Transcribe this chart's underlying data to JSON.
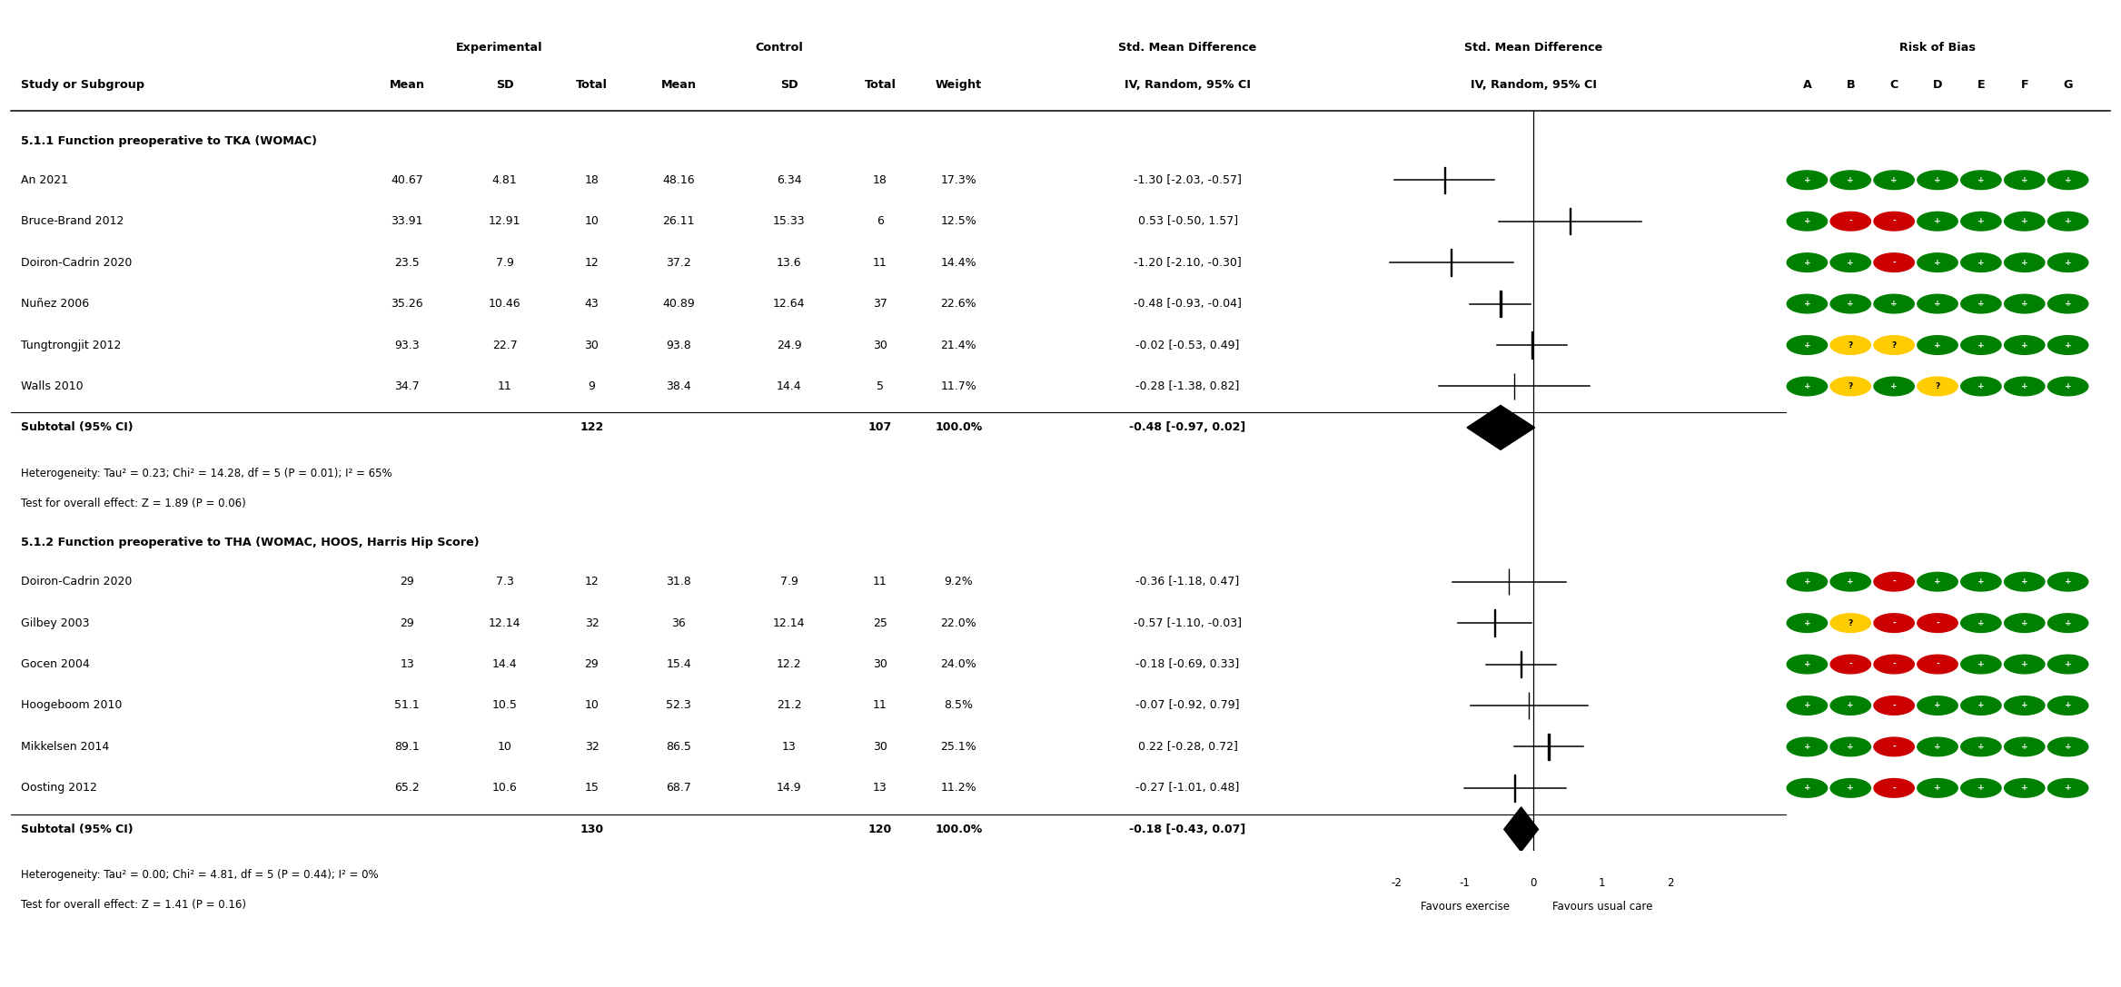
{
  "header_experimental": "Experimental",
  "header_control": "Control",
  "header_smd_top": "Std. Mean Difference",
  "header_smd_bot": "IV, Random, 95% CI",
  "header_forest_top": "Std. Mean Difference",
  "header_forest_bot": "IV, Random, 95% CI",
  "header_rob": "Risk of Bias",
  "rob_headers": [
    "A",
    "B",
    "C",
    "D",
    "E",
    "F",
    "G"
  ],
  "group1_header": "5.1.1 Function preoperative to TKA (WOMAC)",
  "group1_studies": [
    {
      "name": "An 2021",
      "exp_mean": "40.67",
      "exp_sd": "4.81",
      "exp_n": "18",
      "ctrl_mean": "48.16",
      "ctrl_sd": "6.34",
      "ctrl_n": "18",
      "weight": "17.3%",
      "smd_text": "-1.30 [-2.03, -0.57]",
      "smd": -1.3,
      "ci_low": -2.03,
      "ci_high": -0.57,
      "rob": [
        "+",
        "+",
        "+",
        "+",
        "+",
        "+",
        "+"
      ]
    },
    {
      "name": "Bruce-Brand 2012",
      "exp_mean": "33.91",
      "exp_sd": "12.91",
      "exp_n": "10",
      "ctrl_mean": "26.11",
      "ctrl_sd": "15.33",
      "ctrl_n": "6",
      "weight": "12.5%",
      "smd_text": "0.53 [-0.50, 1.57]",
      "smd": 0.53,
      "ci_low": -0.5,
      "ci_high": 1.57,
      "rob": [
        "+",
        "-",
        "-",
        "+",
        "+",
        "+",
        "+"
      ]
    },
    {
      "name": "Doiron-Cadrin 2020",
      "exp_mean": "23.5",
      "exp_sd": "7.9",
      "exp_n": "12",
      "ctrl_mean": "37.2",
      "ctrl_sd": "13.6",
      "ctrl_n": "11",
      "weight": "14.4%",
      "smd_text": "-1.20 [-2.10, -0.30]",
      "smd": -1.2,
      "ci_low": -2.1,
      "ci_high": -0.3,
      "rob": [
        "+",
        "+",
        "-",
        "+",
        "+",
        "+",
        "+"
      ]
    },
    {
      "name": "Nuñez 2006",
      "exp_mean": "35.26",
      "exp_sd": "10.46",
      "exp_n": "43",
      "ctrl_mean": "40.89",
      "ctrl_sd": "12.64",
      "ctrl_n": "37",
      "weight": "22.6%",
      "smd_text": "-0.48 [-0.93, -0.04]",
      "smd": -0.48,
      "ci_low": -0.93,
      "ci_high": -0.04,
      "rob": [
        "+",
        "+",
        "+",
        "+",
        "+",
        "+",
        "+"
      ]
    },
    {
      "name": "Tungtrongjit 2012",
      "exp_mean": "93.3",
      "exp_sd": "22.7",
      "exp_n": "30",
      "ctrl_mean": "93.8",
      "ctrl_sd": "24.9",
      "ctrl_n": "30",
      "weight": "21.4%",
      "smd_text": "-0.02 [-0.53, 0.49]",
      "smd": -0.02,
      "ci_low": -0.53,
      "ci_high": 0.49,
      "rob": [
        "+",
        "?",
        "?",
        "+",
        "+",
        "+",
        "+"
      ]
    },
    {
      "name": "Walls 2010",
      "exp_mean": "34.7",
      "exp_sd": "11",
      "exp_n": "9",
      "ctrl_mean": "38.4",
      "ctrl_sd": "14.4",
      "ctrl_n": "5",
      "weight": "11.7%",
      "smd_text": "-0.28 [-1.38, 0.82]",
      "smd": -0.28,
      "ci_low": -1.38,
      "ci_high": 0.82,
      "rob": [
        "+",
        "?",
        "+",
        "?",
        "+",
        "+",
        "+"
      ]
    }
  ],
  "group1_subtotal": {
    "exp_n": "122",
    "ctrl_n": "107",
    "weight": "100.0%",
    "smd_text": "-0.48 [-0.97, 0.02]",
    "smd": -0.48,
    "ci_low": -0.97,
    "ci_high": 0.02
  },
  "group1_het": "Heterogeneity: Tau² = 0.23; Chi² = 14.28, df = 5 (P = 0.01); I² = 65%",
  "group1_effect": "Test for overall effect: Z = 1.89 (P = 0.06)",
  "group2_header": "5.1.2 Function preoperative to THA (WOMAC, HOOS, Harris Hip Score)",
  "group2_studies": [
    {
      "name": "Doiron-Cadrin 2020",
      "exp_mean": "29",
      "exp_sd": "7.3",
      "exp_n": "12",
      "ctrl_mean": "31.8",
      "ctrl_sd": "7.9",
      "ctrl_n": "11",
      "weight": "9.2%",
      "smd_text": "-0.36 [-1.18, 0.47]",
      "smd": -0.36,
      "ci_low": -1.18,
      "ci_high": 0.47,
      "rob": [
        "+",
        "+",
        "-",
        "+",
        "+",
        "+",
        "+"
      ]
    },
    {
      "name": "Gilbey 2003",
      "exp_mean": "29",
      "exp_sd": "12.14",
      "exp_n": "32",
      "ctrl_mean": "36",
      "ctrl_sd": "12.14",
      "ctrl_n": "25",
      "weight": "22.0%",
      "smd_text": "-0.57 [-1.10, -0.03]",
      "smd": -0.57,
      "ci_low": -1.1,
      "ci_high": -0.03,
      "rob": [
        "+",
        "?",
        "-",
        "-",
        "+",
        "+",
        "+"
      ]
    },
    {
      "name": "Gocen 2004",
      "exp_mean": "13",
      "exp_sd": "14.4",
      "exp_n": "29",
      "ctrl_mean": "15.4",
      "ctrl_sd": "12.2",
      "ctrl_n": "30",
      "weight": "24.0%",
      "smd_text": "-0.18 [-0.69, 0.33]",
      "smd": -0.18,
      "ci_low": -0.69,
      "ci_high": 0.33,
      "rob": [
        "+",
        "-",
        "-",
        "-",
        "+",
        "+",
        "+"
      ]
    },
    {
      "name": "Hoogeboom 2010",
      "exp_mean": "51.1",
      "exp_sd": "10.5",
      "exp_n": "10",
      "ctrl_mean": "52.3",
      "ctrl_sd": "21.2",
      "ctrl_n": "11",
      "weight": "8.5%",
      "smd_text": "-0.07 [-0.92, 0.79]",
      "smd": -0.07,
      "ci_low": -0.92,
      "ci_high": 0.79,
      "rob": [
        "+",
        "+",
        "-",
        "+",
        "+",
        "+",
        "+"
      ]
    },
    {
      "name": "Mikkelsen 2014",
      "exp_mean": "89.1",
      "exp_sd": "10",
      "exp_n": "32",
      "ctrl_mean": "86.5",
      "ctrl_sd": "13",
      "ctrl_n": "30",
      "weight": "25.1%",
      "smd_text": "0.22 [-0.28, 0.72]",
      "smd": 0.22,
      "ci_low": -0.28,
      "ci_high": 0.72,
      "rob": [
        "+",
        "+",
        "-",
        "+",
        "+",
        "+",
        "+"
      ]
    },
    {
      "name": "Oosting 2012",
      "exp_mean": "65.2",
      "exp_sd": "10.6",
      "exp_n": "15",
      "ctrl_mean": "68.7",
      "ctrl_sd": "14.9",
      "ctrl_n": "13",
      "weight": "11.2%",
      "smd_text": "-0.27 [-1.01, 0.48]",
      "smd": -0.27,
      "ci_low": -1.01,
      "ci_high": 0.48,
      "rob": [
        "+",
        "+",
        "-",
        "+",
        "+",
        "+",
        "+"
      ]
    }
  ],
  "group2_subtotal": {
    "exp_n": "130",
    "ctrl_n": "120",
    "weight": "100.0%",
    "smd_text": "-0.18 [-0.43, 0.07]",
    "smd": -0.18,
    "ci_low": -0.43,
    "ci_high": 0.07
  },
  "group2_het": "Heterogeneity: Tau² = 0.00; Chi² = 4.81, df = 5 (P = 0.44); I² = 0%",
  "group2_effect": "Test for overall effect: Z = 1.41 (P = 0.16)",
  "forest_xlim": [
    -3,
    3
  ],
  "forest_xticks": [
    -2,
    -1,
    0,
    1,
    2
  ],
  "xlabel_left": "Favours exercise",
  "xlabel_right": "Favours usual care",
  "rob_colors": {
    "+": "#008000",
    "-": "#cc0000",
    "?": "#ffcc00"
  },
  "text_color_rob": {
    "+": "white",
    "-": "white",
    "?": "black"
  }
}
